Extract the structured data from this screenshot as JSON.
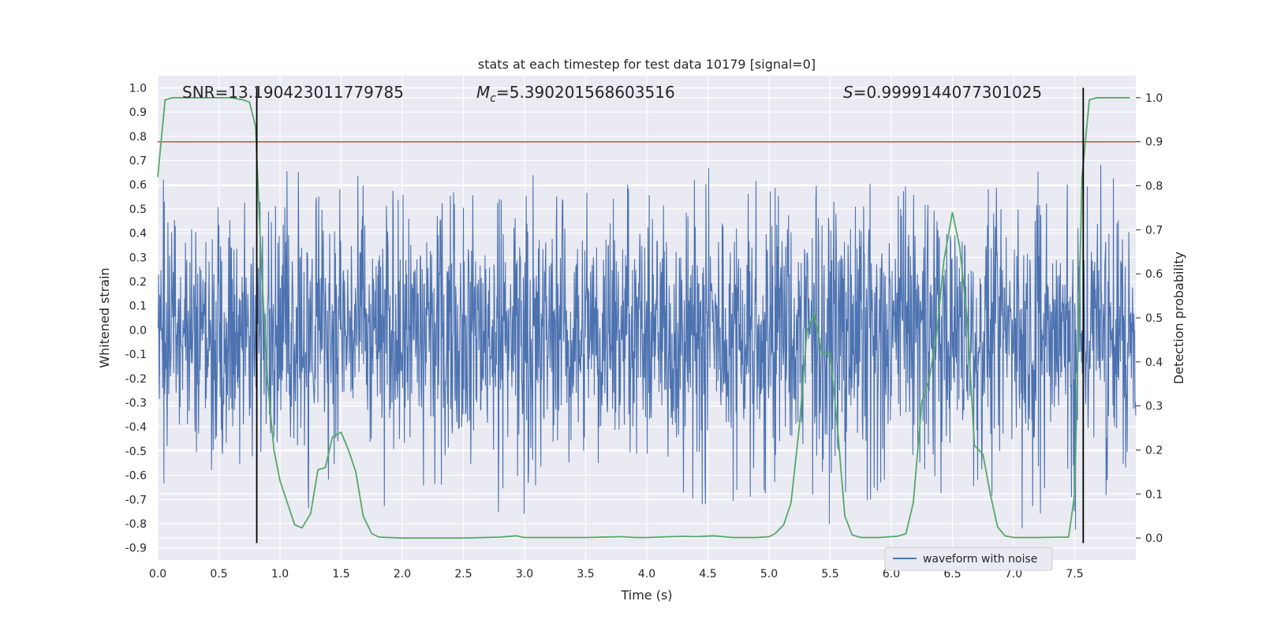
{
  "chart_data": {
    "type": "line",
    "title": "stats at each timestep for test data 10179 [signal=0]",
    "xlabel": "Time (s)",
    "ylabel": "Whitened strain",
    "y2label": "Detection probability",
    "xlim": [
      0.0,
      8.0
    ],
    "ylim": [
      -0.95,
      1.05
    ],
    "y2lim": [
      -0.05,
      1.05
    ],
    "x_ticks": [
      "0.0",
      "0.5",
      "1.0",
      "1.5",
      "2.0",
      "2.5",
      "3.0",
      "3.5",
      "4.0",
      "4.5",
      "5.0",
      "5.5",
      "6.0",
      "6.5",
      "7.0",
      "7.5"
    ],
    "y_ticks": [
      "1.0",
      "0.9",
      "0.8",
      "0.7",
      "0.6",
      "0.5",
      "0.4",
      "0.3",
      "0.2",
      "0.1",
      "0.0",
      "-0.1",
      "-0.2",
      "-0.3",
      "-0.4",
      "-0.5",
      "-0.6",
      "-0.7",
      "-0.8",
      "-0.9"
    ],
    "y2_ticks": [
      "1.0",
      "0.9",
      "0.8",
      "0.7",
      "0.6",
      "0.5",
      "0.4",
      "0.3",
      "0.2",
      "0.1",
      "0.0"
    ],
    "grid": true,
    "legend": {
      "position": "lower-right",
      "entries": [
        "waveform with noise"
      ]
    },
    "annotations": {
      "snr": "SNR=13.190423011779785",
      "mc_symbol": "M",
      "mc_sub": "c",
      "mc_value": "=5.390201568603516",
      "s_symbol": "S",
      "s_value": "=0.9999144077301025"
    },
    "series": [
      {
        "name": "waveform with noise",
        "axis": "left",
        "color": "#4c72b0",
        "style": "dense noise trace, core amplitude about ±0.3, peaks to about ±0.8",
        "envelope_x": [
          0.0,
          0.25,
          0.5,
          0.75,
          1.0,
          1.5,
          2.0,
          2.5,
          3.0,
          3.5,
          4.0,
          4.5,
          5.0,
          5.5,
          6.0,
          6.5,
          7.0,
          7.5,
          8.0
        ],
        "envelope_upper": [
          0.65,
          0.55,
          0.6,
          0.66,
          0.75,
          0.65,
          0.6,
          0.6,
          0.65,
          0.6,
          0.65,
          0.7,
          0.65,
          0.7,
          0.6,
          0.65,
          0.6,
          0.75,
          0.6
        ],
        "envelope_lower": [
          -0.88,
          -0.6,
          -0.6,
          -0.55,
          -0.7,
          -0.8,
          -0.7,
          -0.65,
          -0.85,
          -0.6,
          -0.6,
          -0.8,
          -0.7,
          -0.85,
          -0.65,
          -0.7,
          -0.85,
          -0.85,
          -0.6
        ]
      },
      {
        "axis": "right",
        "color": "#55a868",
        "x": [
          0.0,
          0.06,
          0.12,
          0.2,
          0.3,
          0.4,
          0.5,
          0.6,
          0.7,
          0.75,
          0.8,
          0.85,
          0.9,
          0.95,
          1.0,
          1.06,
          1.12,
          1.18,
          1.25,
          1.31,
          1.37,
          1.43,
          1.5,
          1.56,
          1.62,
          1.68,
          1.75,
          1.81,
          1.9,
          2.0,
          2.2,
          2.5,
          2.8,
          2.93,
          3.0,
          3.2,
          3.5,
          3.8,
          3.9,
          4.0,
          4.2,
          4.3,
          4.4,
          4.55,
          4.7,
          4.9,
          5.0,
          5.05,
          5.12,
          5.18,
          5.25,
          5.31,
          5.37,
          5.43,
          5.5,
          5.56,
          5.62,
          5.68,
          5.75,
          5.9,
          6.05,
          6.12,
          6.18,
          6.25,
          6.31,
          6.37,
          6.43,
          6.5,
          6.56,
          6.62,
          6.68,
          6.75,
          6.81,
          6.87,
          6.93,
          7.0,
          7.2,
          7.4,
          7.45,
          7.5,
          7.56,
          7.62,
          7.68,
          7.75,
          7.85,
          7.95
        ],
        "y": [
          0.82,
          0.995,
          1.0,
          1.0,
          1.0,
          1.0,
          1.0,
          1.0,
          0.995,
          0.99,
          0.935,
          0.6,
          0.35,
          0.2,
          0.13,
          0.08,
          0.03,
          0.023,
          0.055,
          0.155,
          0.16,
          0.23,
          0.24,
          0.2,
          0.15,
          0.05,
          0.01,
          0.002,
          0.001,
          0.0,
          0.0,
          0.0,
          0.002,
          0.005,
          0.001,
          0.001,
          0.001,
          0.003,
          0.001,
          0.001,
          0.003,
          0.004,
          0.003,
          0.005,
          0.001,
          0.001,
          0.003,
          0.01,
          0.03,
          0.08,
          0.26,
          0.47,
          0.51,
          0.42,
          0.42,
          0.25,
          0.05,
          0.007,
          0.001,
          0.001,
          0.004,
          0.01,
          0.08,
          0.31,
          0.36,
          0.46,
          0.63,
          0.74,
          0.66,
          0.5,
          0.21,
          0.19,
          0.1,
          0.025,
          0.005,
          0.001,
          0.001,
          0.002,
          0.002,
          0.1,
          0.82,
          0.995,
          1.0,
          1.0,
          1.0,
          1.0
        ]
      }
    ],
    "threshold_line": {
      "axis": "right",
      "value": 0.9,
      "color": "#c44e52"
    },
    "vertical_markers": {
      "x": [
        0.81,
        7.57
      ],
      "y_range": [
        -0.88,
        1.0
      ],
      "color": "#000000"
    }
  }
}
